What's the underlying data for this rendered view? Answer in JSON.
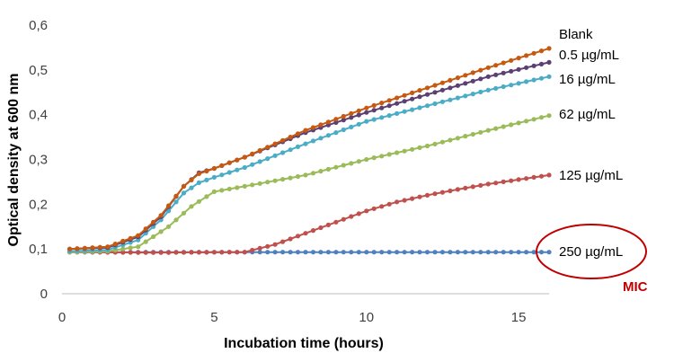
{
  "chart_data": {
    "type": "line",
    "xlabel": "Incubation time (hours)",
    "ylabel": "Optical density at 600 nm",
    "xlim": [
      0,
      16
    ],
    "ylim": [
      0,
      0.6
    ],
    "xticks": [
      0,
      5,
      10,
      15
    ],
    "yticks": [
      0,
      0.1,
      0.2,
      0.3,
      0.4,
      0.5,
      0.6
    ],
    "ytick_labels": [
      "0",
      "0,1",
      "0,2",
      "0,3",
      "0,4",
      "0,5",
      "0,6"
    ],
    "grid": false,
    "legend": "labels at line ends (right)",
    "series": [
      {
        "name": "Blank",
        "color": "#C65911",
        "points": [
          [
            0.25,
            0.1
          ],
          [
            1.5,
            0.105
          ],
          [
            2.5,
            0.13
          ],
          [
            3.25,
            0.175
          ],
          [
            4.0,
            0.24
          ],
          [
            4.5,
            0.268
          ],
          [
            5.0,
            0.28
          ],
          [
            6.0,
            0.305
          ],
          [
            8.0,
            0.365
          ],
          [
            10.0,
            0.415
          ],
          [
            12.0,
            0.46
          ],
          [
            14.0,
            0.505
          ],
          [
            16.0,
            0.548
          ]
        ]
      },
      {
        "name": "0.5 µg/mL",
        "color": "#5C3F73",
        "points": [
          [
            0.25,
            0.1
          ],
          [
            1.5,
            0.103
          ],
          [
            2.5,
            0.127
          ],
          [
            3.25,
            0.172
          ],
          [
            4.0,
            0.24
          ],
          [
            4.5,
            0.27
          ],
          [
            5.0,
            0.28
          ],
          [
            6.0,
            0.305
          ],
          [
            8.0,
            0.36
          ],
          [
            10.0,
            0.405
          ],
          [
            12.0,
            0.445
          ],
          [
            14.0,
            0.485
          ],
          [
            16.0,
            0.517
          ]
        ]
      },
      {
        "name": "16 µg/mL",
        "color": "#4BACC6",
        "points": [
          [
            0.25,
            0.095
          ],
          [
            1.5,
            0.098
          ],
          [
            2.5,
            0.12
          ],
          [
            3.25,
            0.165
          ],
          [
            4.0,
            0.225
          ],
          [
            4.5,
            0.248
          ],
          [
            5.0,
            0.26
          ],
          [
            6.0,
            0.282
          ],
          [
            8.0,
            0.335
          ],
          [
            10.0,
            0.385
          ],
          [
            12.0,
            0.42
          ],
          [
            14.0,
            0.455
          ],
          [
            16.0,
            0.485
          ]
        ]
      },
      {
        "name": "62 µg/mL",
        "color": "#9BBB59",
        "points": [
          [
            0.25,
            0.093
          ],
          [
            1.5,
            0.095
          ],
          [
            2.5,
            0.105
          ],
          [
            3.5,
            0.15
          ],
          [
            4.25,
            0.195
          ],
          [
            5.0,
            0.228
          ],
          [
            6.0,
            0.24
          ],
          [
            8.0,
            0.265
          ],
          [
            10.0,
            0.3
          ],
          [
            12.0,
            0.33
          ],
          [
            14.0,
            0.365
          ],
          [
            16.0,
            0.398
          ]
        ]
      },
      {
        "name": "125 µg/mL",
        "color": "#C0504D",
        "points": [
          [
            0.25,
            0.093
          ],
          [
            3.0,
            0.092
          ],
          [
            6.0,
            0.093
          ],
          [
            7.0,
            0.11
          ],
          [
            8.0,
            0.135
          ],
          [
            9.0,
            0.16
          ],
          [
            10.0,
            0.185
          ],
          [
            11.0,
            0.205
          ],
          [
            12.0,
            0.22
          ],
          [
            13.0,
            0.233
          ],
          [
            14.0,
            0.245
          ],
          [
            15.0,
            0.255
          ],
          [
            16.0,
            0.265
          ]
        ]
      },
      {
        "name": "250 µg/mL",
        "color": "#4F81BD",
        "points": [
          [
            0.25,
            0.093
          ],
          [
            8.0,
            0.093
          ],
          [
            16.0,
            0.093
          ]
        ]
      }
    ],
    "annotation": {
      "text": "MIC",
      "color": "#C00000",
      "target": "250 µg/mL"
    }
  }
}
